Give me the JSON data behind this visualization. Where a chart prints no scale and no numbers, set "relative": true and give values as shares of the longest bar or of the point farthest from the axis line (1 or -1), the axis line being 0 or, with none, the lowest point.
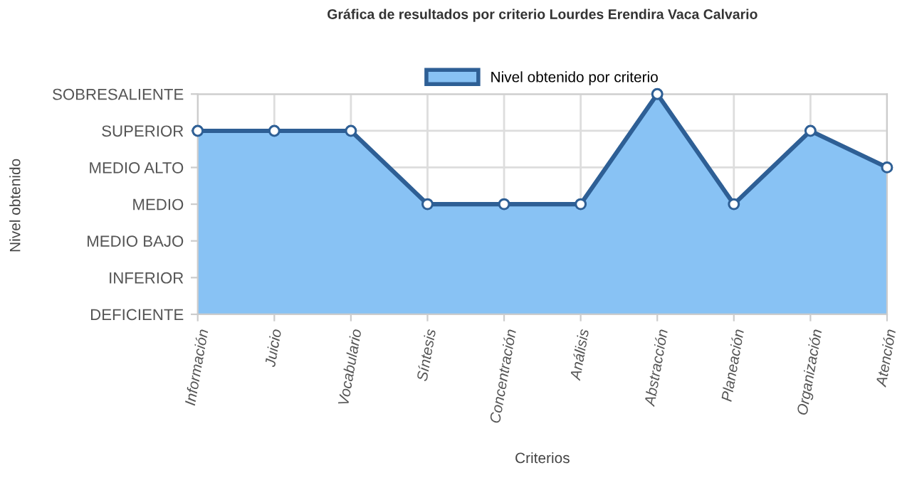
{
  "chart_data": {
    "type": "area",
    "title": "Gráfica de resultados por criterio Lourdes Erendira Vaca Calvario",
    "xlabel": "Criterios",
    "annotations": [
      "Nivel obtenido"
    ],
    "categories": [
      "Información",
      "Juicio",
      "Vocabulario",
      "Síntesis",
      "Concentración",
      "Análisis",
      "Abstracción",
      "Planeación",
      "Organización",
      "Atención"
    ],
    "series": [
      {
        "name": "Nivel obtenido por criterio",
        "color": "#2e5f95",
        "values": [
          0.833,
          0.833,
          0.833,
          0.5,
          0.5,
          0.5,
          1,
          0.5,
          0.833,
          0.667
        ]
      }
    ],
    "relative": true,
    "y_categories": [
      "SOBRESALIENTE",
      "SUPERIOR",
      "MEDIO ALTO",
      "MEDIO",
      "MEDIO BAJO",
      "INFERIOR",
      "DEFICIENTE"
    ],
    "grid": true,
    "legend": "top",
    "marker": "circle",
    "line_style": "solid"
  }
}
